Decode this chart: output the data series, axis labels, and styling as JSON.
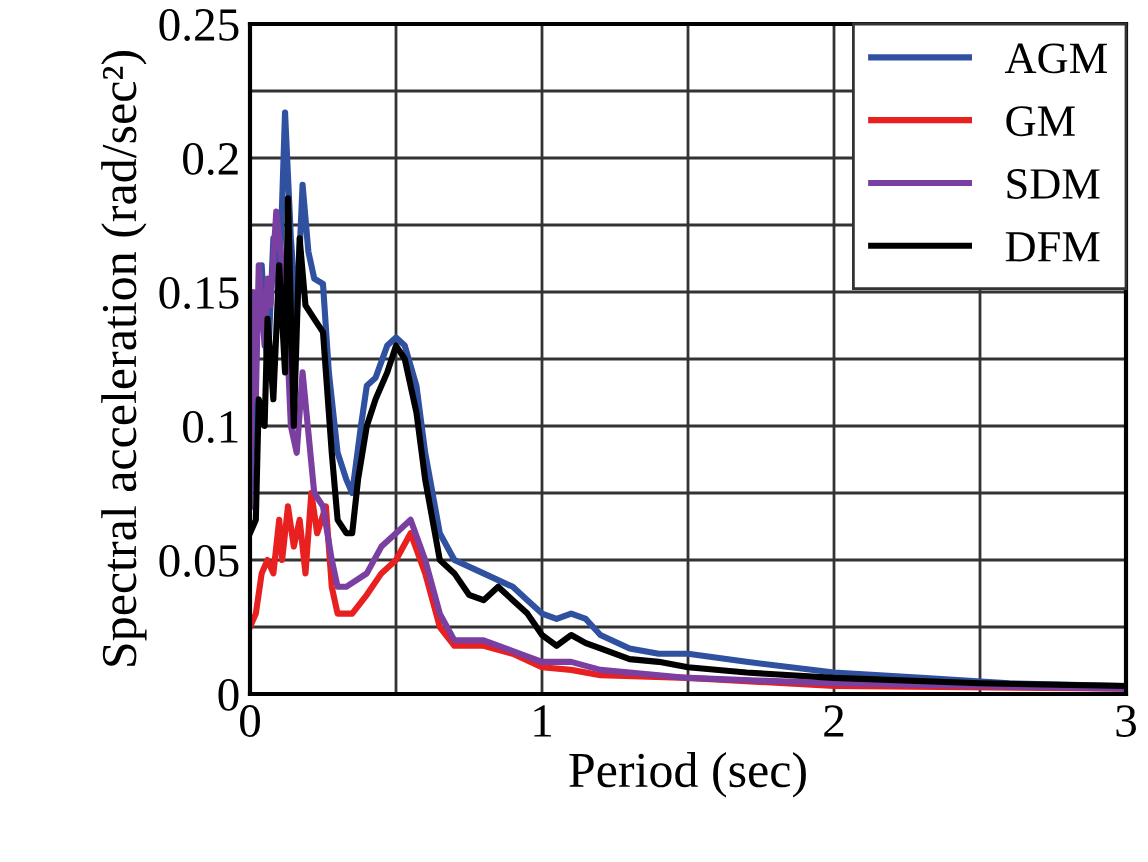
{
  "chart_data": {
    "type": "line",
    "xlabel": "Period (sec)",
    "ylabel": "Spectral acceleration (rad/sec²)",
    "xlim": [
      0,
      3
    ],
    "ylim": [
      0,
      0.25
    ],
    "xticks": [
      0,
      {
        "value": 0.5,
        "label": null
      },
      1,
      {
        "value": 1.5,
        "label": null
      },
      2,
      {
        "value": 2.5,
        "label": null
      },
      3
    ],
    "yticks": [
      0,
      {
        "value": 0.025,
        "label": null
      },
      0.05,
      {
        "value": 0.075,
        "label": null
      },
      0.1,
      {
        "value": 0.125,
        "label": null
      },
      0.15,
      {
        "value": 0.175,
        "label": null
      },
      0.2,
      {
        "value": 0.225,
        "label": null
      },
      0.25
    ],
    "grid": true,
    "legend": "top right",
    "line_style": "solid",
    "series": [
      {
        "name": "AGM",
        "color": "#3050a0",
        "x": [
          0,
          0.02,
          0.04,
          0.06,
          0.08,
          0.1,
          0.12,
          0.14,
          0.16,
          0.18,
          0.2,
          0.22,
          0.25,
          0.27,
          0.3,
          0.33,
          0.35,
          0.38,
          0.4,
          0.43,
          0.47,
          0.5,
          0.53,
          0.57,
          0.6,
          0.65,
          0.7,
          0.8,
          0.9,
          0.95,
          1.0,
          1.05,
          1.1,
          1.15,
          1.2,
          1.3,
          1.4,
          1.5,
          1.7,
          2.0,
          2.3,
          2.6,
          3.0
        ],
        "values": [
          0.07,
          0.13,
          0.16,
          0.12,
          0.17,
          0.15,
          0.217,
          0.17,
          0.14,
          0.19,
          0.165,
          0.155,
          0.153,
          0.12,
          0.09,
          0.08,
          0.075,
          0.1,
          0.115,
          0.118,
          0.13,
          0.133,
          0.13,
          0.115,
          0.09,
          0.06,
          0.05,
          0.045,
          0.04,
          0.035,
          0.03,
          0.028,
          0.03,
          0.028,
          0.022,
          0.017,
          0.015,
          0.015,
          0.012,
          0.008,
          0.006,
          0.004,
          0.003
        ]
      },
      {
        "name": "GM",
        "color": "#e82020",
        "x": [
          0,
          0.02,
          0.04,
          0.06,
          0.08,
          0.1,
          0.11,
          0.13,
          0.15,
          0.17,
          0.19,
          0.21,
          0.23,
          0.26,
          0.28,
          0.3,
          0.35,
          0.4,
          0.45,
          0.5,
          0.55,
          0.6,
          0.65,
          0.7,
          0.8,
          0.9,
          1.0,
          1.1,
          1.2,
          1.5,
          2.0,
          3.0
        ],
        "values": [
          0.025,
          0.03,
          0.045,
          0.05,
          0.045,
          0.065,
          0.05,
          0.07,
          0.055,
          0.065,
          0.045,
          0.075,
          0.06,
          0.07,
          0.04,
          0.03,
          0.03,
          0.037,
          0.045,
          0.05,
          0.06,
          0.045,
          0.025,
          0.018,
          0.018,
          0.015,
          0.01,
          0.009,
          0.007,
          0.006,
          0.003,
          0.002
        ]
      },
      {
        "name": "SDM",
        "color": "#7a3fa0",
        "x": [
          0,
          0.01,
          0.02,
          0.03,
          0.05,
          0.06,
          0.07,
          0.09,
          0.1,
          0.12,
          0.14,
          0.16,
          0.18,
          0.22,
          0.25,
          0.28,
          0.3,
          0.33,
          0.4,
          0.45,
          0.5,
          0.55,
          0.6,
          0.65,
          0.7,
          0.8,
          0.9,
          1.0,
          1.1,
          1.2,
          1.5,
          2.0,
          3.0
        ],
        "values": [
          0.07,
          0.15,
          0.11,
          0.16,
          0.13,
          0.155,
          0.145,
          0.18,
          0.17,
          0.15,
          0.1,
          0.09,
          0.12,
          0.075,
          0.07,
          0.05,
          0.04,
          0.04,
          0.045,
          0.055,
          0.06,
          0.065,
          0.05,
          0.03,
          0.02,
          0.02,
          0.016,
          0.012,
          0.012,
          0.009,
          0.006,
          0.004,
          0.002
        ]
      },
      {
        "name": "DFM",
        "color": "#000000",
        "x": [
          0,
          0.02,
          0.03,
          0.05,
          0.06,
          0.08,
          0.1,
          0.12,
          0.13,
          0.15,
          0.17,
          0.19,
          0.22,
          0.25,
          0.28,
          0.3,
          0.33,
          0.35,
          0.37,
          0.4,
          0.43,
          0.47,
          0.5,
          0.53,
          0.57,
          0.6,
          0.65,
          0.7,
          0.75,
          0.8,
          0.85,
          0.9,
          0.95,
          1.0,
          1.05,
          1.1,
          1.15,
          1.2,
          1.3,
          1.4,
          1.5,
          1.7,
          2.0,
          2.5,
          3.0
        ],
        "values": [
          0.06,
          0.065,
          0.11,
          0.1,
          0.14,
          0.11,
          0.16,
          0.12,
          0.185,
          0.1,
          0.17,
          0.145,
          0.14,
          0.135,
          0.09,
          0.065,
          0.06,
          0.06,
          0.08,
          0.1,
          0.11,
          0.12,
          0.13,
          0.125,
          0.105,
          0.08,
          0.05,
          0.045,
          0.037,
          0.035,
          0.04,
          0.035,
          0.03,
          0.022,
          0.018,
          0.022,
          0.019,
          0.017,
          0.013,
          0.012,
          0.01,
          0.008,
          0.006,
          0.004,
          0.003
        ]
      }
    ]
  }
}
